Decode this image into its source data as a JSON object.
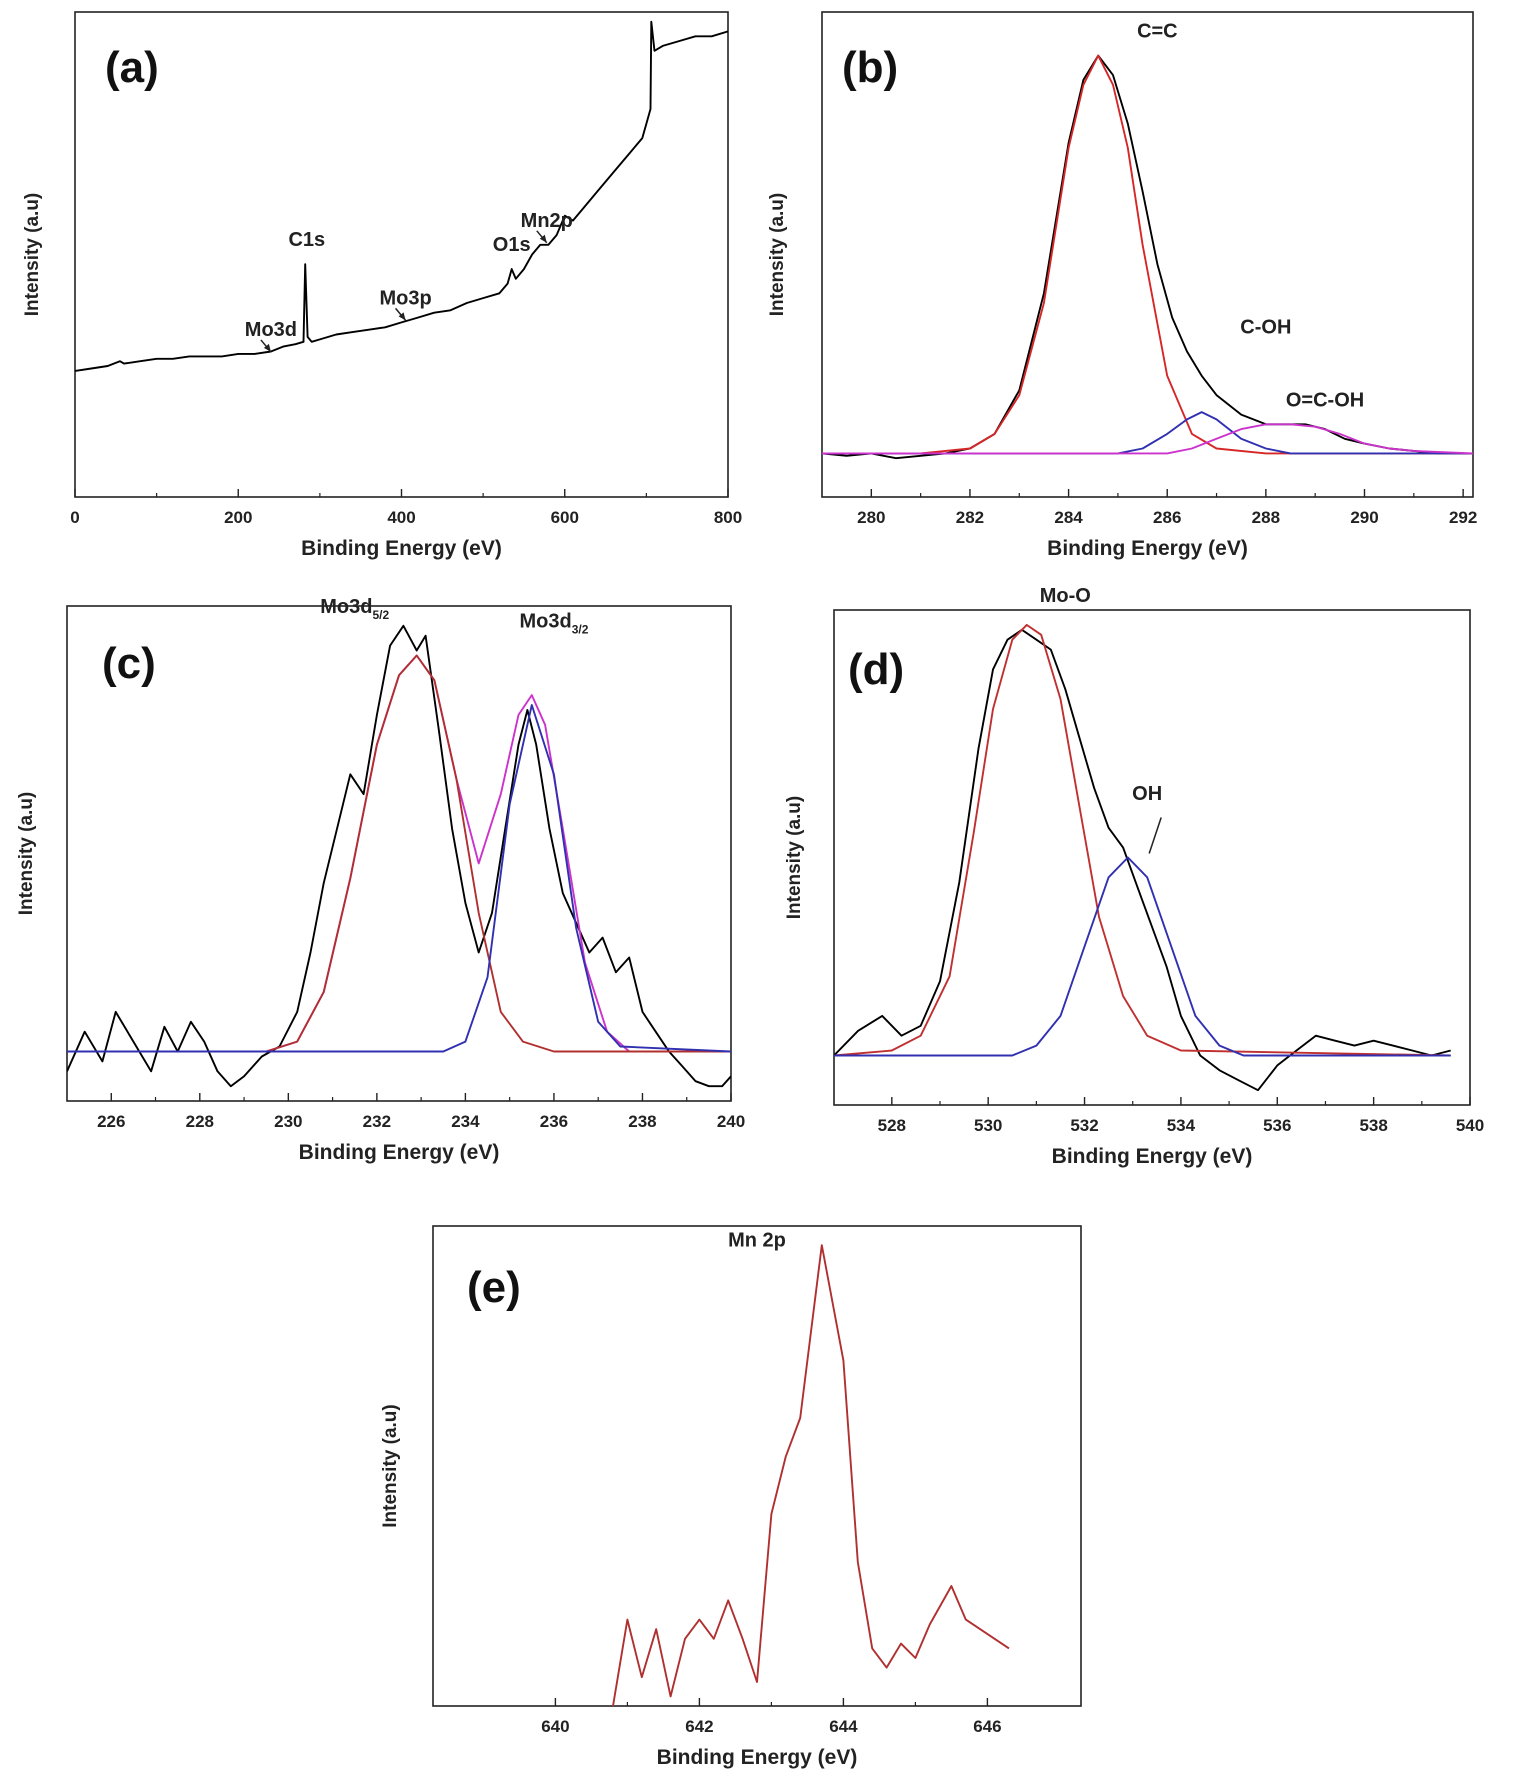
{
  "chart_data": [
    {
      "id": "a",
      "type": "line",
      "panel_label": "(a)",
      "xlabel": "Binding Energy (eV)",
      "ylabel": "Intensity (a.u)",
      "xlim": [
        0,
        800
      ],
      "ylim": [
        0,
        100
      ],
      "xticks": [
        0,
        200,
        400,
        600,
        800
      ],
      "series": [
        {
          "name": "",
          "color": "#000000",
          "x": [
            0,
            20,
            40,
            55,
            60,
            80,
            100,
            120,
            140,
            160,
            180,
            200,
            220,
            240,
            255,
            270,
            280,
            282,
            285,
            290,
            300,
            320,
            340,
            360,
            380,
            400,
            410,
            420,
            440,
            460,
            480,
            500,
            520,
            530,
            535,
            540,
            550,
            560,
            570,
            580,
            590,
            600,
            610,
            620,
            640,
            660,
            680,
            695,
            700,
            705,
            706,
            710,
            720,
            740,
            760,
            780,
            800
          ],
          "y": [
            26,
            26.5,
            27,
            28,
            27.5,
            28,
            28.5,
            28.5,
            29,
            29,
            29,
            29.5,
            29.5,
            30,
            31,
            31.5,
            32,
            48,
            33,
            32,
            32.5,
            33.5,
            34,
            34.5,
            35,
            36,
            36.5,
            37,
            38,
            38.5,
            40,
            41,
            42,
            44,
            47,
            45,
            47,
            50,
            52,
            52,
            54,
            58,
            57,
            59,
            63,
            67,
            71,
            74,
            77,
            80,
            98,
            92,
            93,
            94,
            95,
            95,
            96
          ]
        }
      ],
      "annotations": [
        {
          "text": "Mo3d",
          "x": 240,
          "y": 29.5
        },
        {
          "text": "C1s",
          "x": 284,
          "y": 48
        },
        {
          "text": "Mo3p",
          "x": 405,
          "y": 36
        },
        {
          "text": "O1s",
          "x": 535,
          "y": 47
        },
        {
          "text": "Mn2p",
          "x": 578,
          "y": 52
        }
      ]
    },
    {
      "id": "b",
      "type": "line",
      "panel_label": "(b)",
      "xlabel": "Binding Energy (eV)",
      "ylabel": "Intensity (a.u)",
      "xlim": [
        279,
        292.2
      ],
      "ylim": [
        0,
        100
      ],
      "xticks": [
        280,
        282,
        284,
        286,
        288,
        290,
        292
      ],
      "series": [
        {
          "name": "",
          "color": "#000000",
          "x": [
            279,
            279.5,
            280,
            280.5,
            281,
            281.5,
            282,
            282.5,
            283,
            283.5,
            284,
            284.3,
            284.6,
            284.9,
            285.2,
            285.5,
            285.8,
            286.1,
            286.4,
            286.7,
            287,
            287.5,
            288,
            288.4,
            288.8,
            289.2,
            289.6,
            290,
            290.5,
            291,
            291.5,
            292,
            292.2
          ],
          "y": [
            9,
            8.5,
            9,
            8,
            8.5,
            9,
            10,
            13,
            22,
            42,
            73,
            86,
            91,
            87,
            77,
            63,
            48,
            37,
            30,
            25,
            21,
            17,
            15,
            15,
            15,
            14,
            12,
            11,
            10,
            9.5,
            9,
            9,
            9
          ]
        },
        {
          "name": "",
          "color": "#d62728",
          "x": [
            279,
            280,
            281,
            282,
            282.5,
            283,
            283.5,
            284,
            284.3,
            284.6,
            284.9,
            285.2,
            285.5,
            286,
            286.5,
            287,
            288,
            289,
            290,
            292.2
          ],
          "y": [
            9,
            9,
            9,
            10,
            13,
            21,
            40,
            72,
            85,
            91,
            85,
            72,
            52,
            25,
            13,
            10,
            9,
            9,
            9,
            9
          ]
        },
        {
          "name": "",
          "color": "#3030b0",
          "x": [
            279,
            285,
            285.5,
            286,
            286.4,
            286.7,
            287,
            287.5,
            288,
            288.5,
            292.2
          ],
          "y": [
            9,
            9,
            10,
            13,
            16,
            17.5,
            16,
            12,
            10,
            9,
            9
          ]
        },
        {
          "name": "",
          "color": "#cc33cc",
          "x": [
            279,
            286,
            286.5,
            287,
            287.5,
            288,
            288.5,
            289,
            289.5,
            290,
            290.5,
            291,
            292.2
          ],
          "y": [
            9,
            9,
            10,
            12,
            14,
            15,
            15,
            14.5,
            13,
            11,
            10,
            9.5,
            9
          ]
        }
      ],
      "annotations": [
        {
          "text": "C=C",
          "x": 285.8,
          "y": 91
        },
        {
          "text": "C-OH",
          "x": 288,
          "y": 30
        },
        {
          "text": "O=C-OH",
          "x": 289.2,
          "y": 15
        }
      ]
    },
    {
      "id": "c",
      "type": "line",
      "panel_label": "(c)",
      "xlabel": "Binding Energy (eV)",
      "ylabel": "Intensity (a.u)",
      "xlim": [
        225,
        240
      ],
      "ylim": [
        0,
        100
      ],
      "xticks": [
        226,
        228,
        230,
        232,
        234,
        236,
        238,
        240
      ],
      "series": [
        {
          "name": "",
          "color": "#000000",
          "x": [
            225,
            225.4,
            225.8,
            226.1,
            226.5,
            226.9,
            227.2,
            227.5,
            227.8,
            228.1,
            228.4,
            228.7,
            229,
            229.4,
            229.8,
            230.2,
            230.5,
            230.8,
            231.1,
            231.4,
            231.7,
            232,
            232.3,
            232.6,
            232.9,
            233.1,
            233.4,
            233.7,
            234,
            234.3,
            234.6,
            234.9,
            235.2,
            235.4,
            235.6,
            235.9,
            236.2,
            236.5,
            236.8,
            237.1,
            237.4,
            237.7,
            238,
            238.3,
            238.6,
            238.9,
            239.2,
            239.5,
            239.8,
            240
          ],
          "y": [
            6,
            14,
            8,
            18,
            12,
            6,
            15,
            10,
            16,
            12,
            6,
            3,
            5,
            9,
            11,
            18,
            30,
            44,
            55,
            66,
            62,
            78,
            92,
            96,
            91,
            94,
            75,
            55,
            40,
            30,
            38,
            55,
            72,
            79,
            72,
            55,
            42,
            36,
            30,
            33,
            26,
            29,
            18,
            14,
            10,
            7,
            4,
            3,
            3,
            5
          ]
        },
        {
          "name": "",
          "color": "#cc33cc",
          "x": [
            225,
            229.5,
            230.2,
            230.8,
            231.4,
            232,
            232.5,
            232.9,
            233.3,
            233.8,
            234.3,
            234.8,
            235.2,
            235.5,
            235.8,
            236.2,
            236.7,
            237.2,
            237.7,
            240
          ],
          "y": [
            10,
            10,
            12,
            22,
            45,
            72,
            86,
            90,
            85,
            65,
            48,
            62,
            78,
            82,
            76,
            55,
            28,
            14,
            10,
            10
          ]
        },
        {
          "name": "",
          "color": "#b03030",
          "x": [
            225,
            229.5,
            230.2,
            230.8,
            231.4,
            232,
            232.5,
            232.9,
            233.3,
            233.8,
            234.3,
            234.8,
            235.3,
            236,
            240
          ],
          "y": [
            10,
            10,
            12,
            22,
            45,
            72,
            86,
            90,
            85,
            65,
            38,
            18,
            12,
            10,
            10
          ]
        },
        {
          "name": "",
          "color": "#3030b0",
          "x": [
            225,
            233.5,
            234,
            234.5,
            235,
            235.5,
            236,
            236.5,
            237,
            237.5,
            240
          ],
          "y": [
            10,
            10,
            12,
            25,
            60,
            80,
            66,
            35,
            16,
            11,
            10
          ]
        }
      ],
      "annotations": [
        {
          "text": "Mo3d",
          "sub": "5/2",
          "x": 231.5,
          "y": 95
        },
        {
          "text": "Mo3d",
          "sub": "3/2",
          "x": 236,
          "y": 92
        }
      ]
    },
    {
      "id": "d",
      "type": "line",
      "panel_label": "(d)",
      "xlabel": "Binding Energy (eV)",
      "ylabel": "Intensity (a.u)",
      "xlim": [
        526.8,
        540
      ],
      "ylim": [
        0,
        100
      ],
      "xticks": [
        528,
        530,
        532,
        534,
        536,
        538,
        540
      ],
      "series": [
        {
          "name": "",
          "color": "#000000",
          "x": [
            526.8,
            527.3,
            527.8,
            528.2,
            528.6,
            529,
            529.4,
            529.8,
            530.1,
            530.4,
            530.7,
            531,
            531.3,
            531.6,
            531.9,
            532.2,
            532.5,
            532.8,
            533.1,
            533.4,
            533.7,
            534,
            534.4,
            534.8,
            535.2,
            535.6,
            536,
            536.4,
            536.8,
            537.2,
            537.6,
            538,
            538.4,
            538.8,
            539.2,
            539.6
          ],
          "y": [
            10,
            15,
            18,
            14,
            16,
            25,
            45,
            72,
            88,
            94,
            96,
            94,
            92,
            84,
            74,
            64,
            56,
            52,
            44,
            36,
            28,
            18,
            10,
            7,
            5,
            3,
            8,
            11,
            14,
            13,
            12,
            13,
            12,
            11,
            10,
            11
          ]
        },
        {
          "name": "",
          "color": "#c03030",
          "x": [
            526.8,
            528,
            528.6,
            529.2,
            529.7,
            530.1,
            530.5,
            530.8,
            531.1,
            531.5,
            531.9,
            532.3,
            532.8,
            533.3,
            534,
            539.6
          ],
          "y": [
            10,
            11,
            14,
            26,
            55,
            80,
            94,
            97,
            95,
            82,
            60,
            38,
            22,
            14,
            11,
            10
          ]
        },
        {
          "name": "",
          "color": "#3030b0",
          "x": [
            526.8,
            530.5,
            531,
            531.5,
            532,
            532.5,
            532.9,
            533.3,
            533.8,
            534.3,
            534.8,
            535.3,
            539.6
          ],
          "y": [
            10,
            10,
            12,
            18,
            32,
            46,
            50,
            46,
            32,
            18,
            12,
            10,
            10
          ]
        }
      ],
      "annotations": [
        {
          "text": "Mo-O",
          "x": 531.6,
          "y": 98
        },
        {
          "text": "OH",
          "x": 533.3,
          "y": 58
        }
      ]
    },
    {
      "id": "e",
      "type": "line",
      "panel_label": "(e)",
      "xlabel": "Binding Energy (eV)",
      "ylabel": "Intensity (a.u)",
      "xlim": [
        638.3,
        647.3
      ],
      "ylim": [
        0,
        100
      ],
      "xticks": [
        640,
        642,
        644,
        646
      ],
      "series": [
        {
          "name": "Mn 2p",
          "color": "#b03030",
          "x": [
            640.8,
            641,
            641.2,
            641.4,
            641.6,
            641.8,
            642,
            642.2,
            642.4,
            642.6,
            642.8,
            643,
            643.2,
            643.4,
            643.7,
            644,
            644.2,
            644.4,
            644.6,
            644.8,
            645,
            645.2,
            645.5,
            645.7,
            646.3
          ],
          "y": [
            0,
            18,
            6,
            16,
            2,
            14,
            18,
            14,
            22,
            14,
            5,
            40,
            52,
            60,
            96,
            72,
            30,
            12,
            8,
            13,
            10,
            17,
            25,
            18,
            12
          ]
        }
      ],
      "annotations": [
        {
          "text": "Mn 2p",
          "x": 642.8,
          "y": 92
        }
      ]
    }
  ]
}
